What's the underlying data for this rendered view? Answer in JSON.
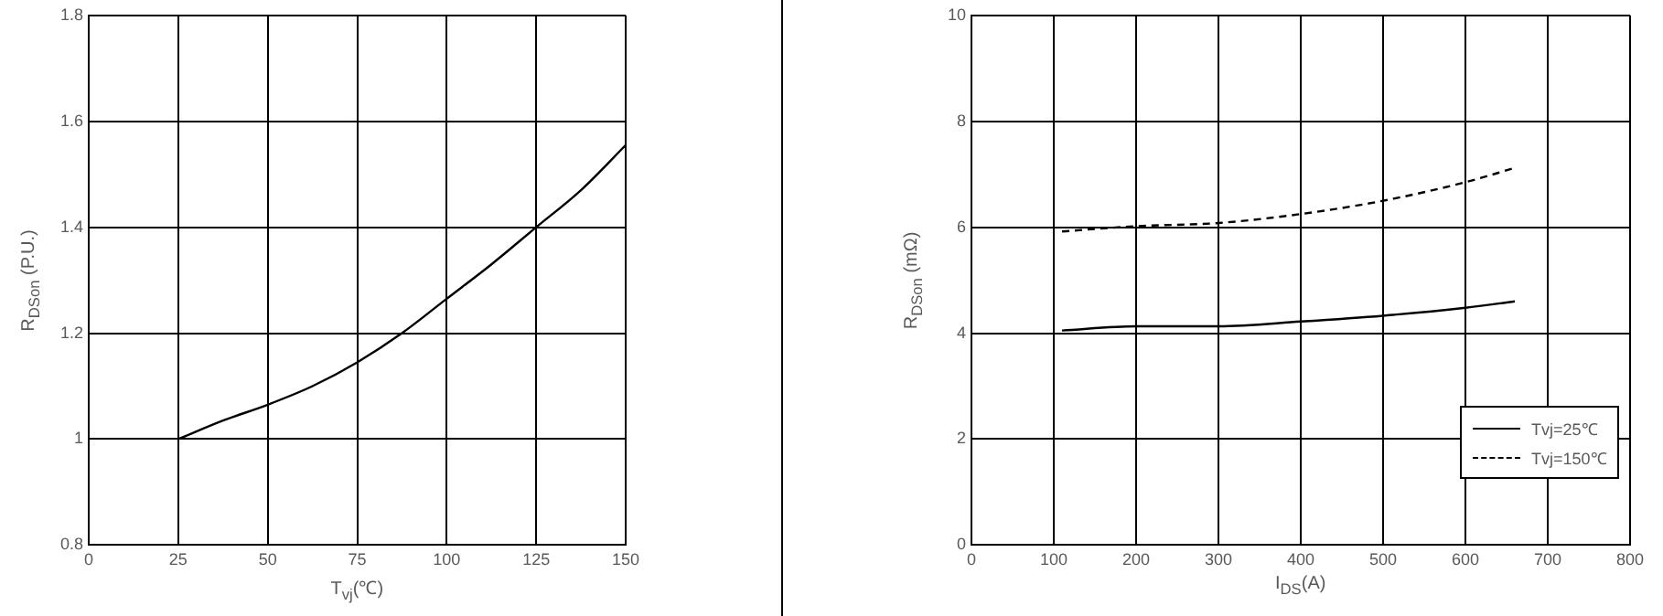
{
  "chart_data": [
    {
      "type": "line",
      "xlabel": "T$_{vj}$(℃)",
      "ylabel": "R$_{DSon}$ (P.U.)",
      "xlim": [
        0,
        150
      ],
      "xticks": [
        0,
        25,
        50,
        75,
        100,
        125,
        150
      ],
      "ylim": [
        0.8,
        1.8
      ],
      "yticks": [
        0.8,
        1,
        1.2,
        1.4,
        1.6,
        1.8
      ],
      "grid": true,
      "legend": false,
      "series": [
        {
          "color": "#000000",
          "line_style": "solid",
          "x": [
            25,
            37.5,
            50,
            62.5,
            75,
            87.5,
            100,
            112.5,
            125,
            137.5,
            150
          ],
          "values": [
            1.0,
            1.035,
            1.065,
            1.1,
            1.145,
            1.2,
            1.265,
            1.33,
            1.4,
            1.47,
            1.555
          ]
        }
      ]
    },
    {
      "type": "line",
      "xlabel": "I$_{DS}$(A)",
      "ylabel": "R$_{DSon}$ (mΩ)",
      "xlim": [
        0,
        800
      ],
      "xticks": [
        0,
        100,
        200,
        300,
        400,
        500,
        600,
        700,
        800
      ],
      "ylim": [
        0,
        10
      ],
      "yticks": [
        0,
        2,
        4,
        6,
        8,
        10
      ],
      "grid": true,
      "legend": "bottom right",
      "series": [
        {
          "name": "Tvj=25℃",
          "color": "#000000",
          "line_style": "solid",
          "x": [
            110,
            200,
            300,
            400,
            500,
            600,
            660
          ],
          "values": [
            4.05,
            4.13,
            4.13,
            4.22,
            4.33,
            4.48,
            4.6
          ]
        },
        {
          "name": "Tvj=150℃",
          "color": "#000000",
          "line_style": "dashed",
          "x": [
            110,
            200,
            300,
            400,
            500,
            600,
            660
          ],
          "values": [
            5.92,
            6.02,
            6.08,
            6.25,
            6.5,
            6.85,
            7.12
          ]
        }
      ]
    }
  ]
}
